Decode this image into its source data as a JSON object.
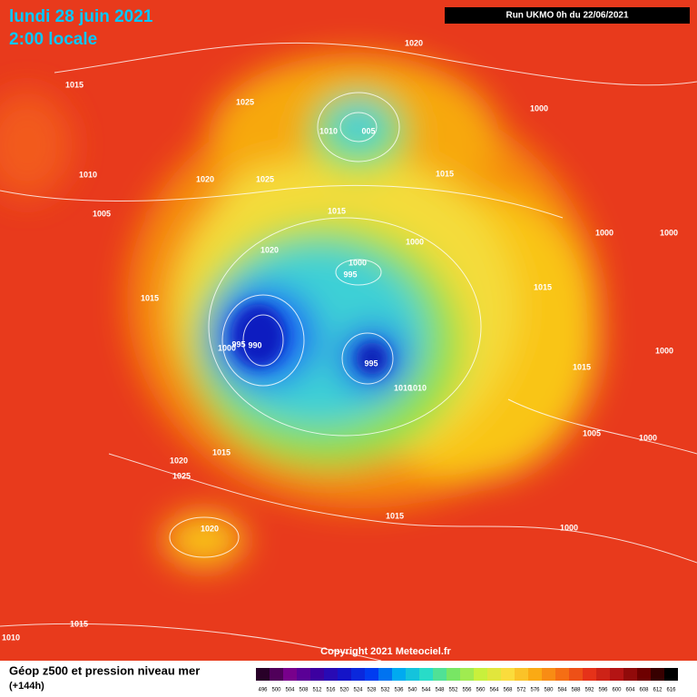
{
  "header": {
    "date": "lundi 28 juin 2021",
    "time": "2:00 locale",
    "run": "Run UKMO 0h du 22/06/2021"
  },
  "isobar_labels": [
    "1020",
    "1015",
    "1025",
    "1010",
    "005",
    "1000",
    "1010",
    "1020",
    "1025",
    "1015",
    "1005",
    "1015",
    "1000",
    "1020",
    "1000",
    "995",
    "1000",
    "1000",
    "1015",
    "1015",
    "995",
    "990",
    "1000",
    "995",
    "1015",
    "1000",
    "1010",
    "1010",
    "1015",
    "1005",
    "1000",
    "1020",
    "1025",
    "1015",
    "1000",
    "1020",
    "1015",
    "1010"
  ],
  "copyright": "Copyright 2021 Meteociel.fr",
  "legend": {
    "title": "Géop z500 et pression niveau mer",
    "subtitle": "(+144h)",
    "scale": [
      496,
      500,
      504,
      508,
      512,
      516,
      520,
      524,
      528,
      532,
      536,
      540,
      544,
      548,
      552,
      556,
      560,
      564,
      568,
      572,
      576,
      580,
      584,
      588,
      592,
      596,
      600,
      604,
      608,
      612,
      616
    ]
  }
}
